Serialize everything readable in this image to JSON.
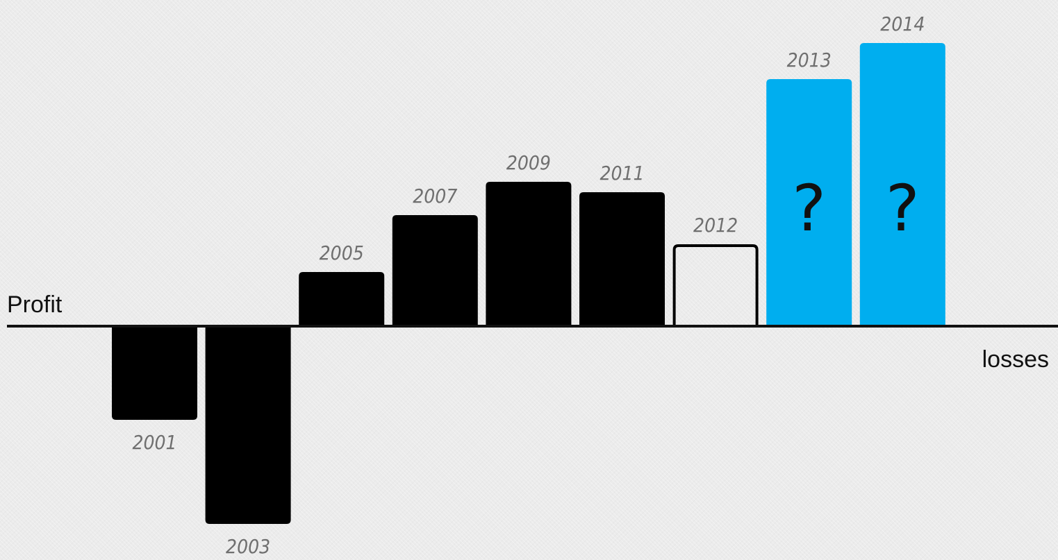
{
  "chart_data": {
    "type": "bar",
    "title": "",
    "xlabel": "",
    "ylabel": "",
    "top_label": "Profit",
    "bottom_label": "losses",
    "categories": [
      "2001",
      "2003",
      "2005",
      "2007",
      "2009",
      "2011",
      "2012",
      "2013",
      "2014"
    ],
    "values": [
      -135,
      -285,
      78,
      160,
      208,
      193,
      118,
      356,
      408
    ],
    "ylim": [
      -300,
      420
    ],
    "grid": false,
    "legend": "none",
    "bar_styles": [
      "solid",
      "solid",
      "solid",
      "solid",
      "solid",
      "solid",
      "outline",
      "projected",
      "projected"
    ],
    "annotations": [
      "",
      "",
      "",
      "",
      "",
      "",
      "",
      "?",
      "?"
    ],
    "colors": {
      "solid": "#000000",
      "projected": "#00aeef",
      "outline_stroke": "#000000",
      "axis": "#111111"
    }
  }
}
